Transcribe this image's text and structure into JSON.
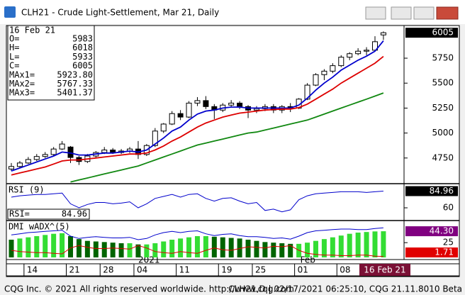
{
  "window": {
    "title": "CLH21 - Crude Light-Settlement, Mar 21, Daily",
    "status_left": "CQG Inc. © 2021 All rights reserved worldwide. http://www.cqg.com",
    "status_right": "CLH21,D | 02/17/2021 06:25:10, CQG 21.11.8010 Beta"
  },
  "info": {
    "date": "16 Feb 21",
    "rows": [
      {
        "label": "O=",
        "value": "5983"
      },
      {
        "label": "H=",
        "value": "6018"
      },
      {
        "label": "L=",
        "value": "5933"
      },
      {
        "label": "C=",
        "value": "6005"
      },
      {
        "label": "MAx1=",
        "value": "5923.80"
      },
      {
        "label": "MAx2=",
        "value": "5767.33"
      },
      {
        "label": "MAx3=",
        "value": "5401.37"
      }
    ]
  },
  "chart_data": [
    {
      "type": "candlestick",
      "categories": [
        null,
        null,
        "14",
        null,
        null,
        null,
        null,
        "21",
        null,
        null,
        null,
        "28",
        null,
        null,
        null,
        "04",
        null,
        null,
        null,
        null,
        "11",
        null,
        null,
        null,
        null,
        "19",
        null,
        null,
        null,
        "25",
        null,
        null,
        null,
        null,
        "01",
        null,
        null,
        null,
        null,
        "08",
        null,
        null,
        null,
        null,
        null
      ],
      "year_label": "2021",
      "month_label": "Feb",
      "cursor_label": "16 Feb 21",
      "open": [
        4640,
        4665,
        4700,
        4735,
        4765,
        4785,
        4840,
        4860,
        4755,
        4715,
        4770,
        4805,
        4830,
        4805,
        4820,
        4840,
        4785,
        4875,
        5020,
        5090,
        5195,
        5160,
        5300,
        5325,
        5265,
        5230,
        5280,
        5300,
        5265,
        5230,
        5245,
        5265,
        5230,
        5265,
        5250,
        5340,
        5480,
        5585,
        5620,
        5675,
        5760,
        5795,
        5820,
        5830,
        5983
      ],
      "high": [
        4700,
        4720,
        4760,
        4790,
        4810,
        4860,
        4920,
        4870,
        4770,
        4790,
        4820,
        4860,
        4850,
        4840,
        4860,
        4920,
        4890,
        5050,
        5100,
        5220,
        5230,
        5320,
        5360,
        5370,
        5290,
        5300,
        5330,
        5320,
        5280,
        5270,
        5290,
        5290,
        5280,
        5300,
        5350,
        5500,
        5600,
        5640,
        5700,
        5780,
        5810,
        5850,
        5860,
        5970,
        6018
      ],
      "low": [
        4620,
        4650,
        4690,
        4720,
        4750,
        4770,
        4830,
        4700,
        4680,
        4700,
        4750,
        4790,
        4790,
        4790,
        4800,
        4740,
        4770,
        4860,
        5000,
        5080,
        5130,
        5150,
        5270,
        5240,
        5140,
        5210,
        5260,
        5240,
        5150,
        5200,
        5220,
        5200,
        5200,
        5210,
        5240,
        5330,
        5470,
        5530,
        5600,
        5660,
        5730,
        5780,
        5780,
        5820,
        5933
      ],
      "close": [
        4665,
        4700,
        4735,
        4765,
        4785,
        4840,
        4890,
        4755,
        4715,
        4770,
        4805,
        4830,
        4805,
        4820,
        4840,
        4785,
        4875,
        5020,
        5090,
        5195,
        5160,
        5300,
        5325,
        5265,
        5230,
        5280,
        5300,
        5265,
        5230,
        5245,
        5265,
        5230,
        5265,
        5250,
        5340,
        5480,
        5585,
        5620,
        5675,
        5760,
        5795,
        5820,
        5830,
        5915,
        6005
      ],
      "series": [
        {
          "color": "#0000cc",
          "values": [
            4620,
            4650,
            4680,
            4710,
            4740,
            4770,
            4810,
            4800,
            4780,
            4780,
            4790,
            4800,
            4800,
            4810,
            4820,
            4810,
            4830,
            4890,
            4950,
            5020,
            5060,
            5130,
            5190,
            5220,
            5230,
            5250,
            5260,
            5260,
            5250,
            5250,
            5250,
            5250,
            5250,
            5250,
            5280,
            5350,
            5430,
            5500,
            5560,
            5630,
            5680,
            5730,
            5770,
            5820,
            5923.8
          ]
        },
        {
          "color": "#dd0000",
          "values": [
            4580,
            4600,
            4620,
            4640,
            4660,
            4690,
            4720,
            4730,
            4730,
            4740,
            4750,
            4760,
            4770,
            4780,
            4790,
            4790,
            4800,
            4830,
            4870,
            4920,
            4960,
            5010,
            5060,
            5100,
            5130,
            5160,
            5180,
            5200,
            5210,
            5220,
            5230,
            5235,
            5240,
            5240,
            5255,
            5290,
            5340,
            5390,
            5440,
            5500,
            5550,
            5600,
            5650,
            5700,
            5767.33
          ]
        },
        {
          "color": "#118811",
          "values": [
            null,
            null,
            null,
            null,
            null,
            null,
            null,
            4510,
            4530,
            4550,
            4570,
            4590,
            4610,
            4630,
            4650,
            4670,
            4700,
            4730,
            4760,
            4790,
            4820,
            4850,
            4880,
            4900,
            4920,
            4940,
            4960,
            4980,
            5000,
            5010,
            5030,
            5050,
            5070,
            5090,
            5110,
            5130,
            5160,
            5190,
            5220,
            5250,
            5280,
            5310,
            5340,
            5370,
            5401.37
          ]
        }
      ],
      "ylim": [
        4500,
        6070
      ],
      "yticks": [
        4750,
        5000,
        5250,
        5500,
        5750
      ],
      "grid": false
    },
    {
      "type": "line",
      "title": "RSI (9)",
      "value_title": "RSI=",
      "color": "#0000cc",
      "values": [
        76,
        78,
        79,
        80,
        80,
        81,
        82,
        66,
        60,
        65,
        68,
        68,
        66,
        67,
        69,
        60,
        66,
        74,
        77,
        80,
        76,
        80,
        81,
        74,
        70,
        74,
        75,
        70,
        66,
        68,
        56,
        58,
        54,
        57,
        72,
        78,
        81,
        82,
        83,
        84,
        84,
        84,
        83,
        84,
        84.96
      ],
      "ylim": [
        42,
        94
      ],
      "yticks": [
        60
      ]
    },
    {
      "type": "dmi",
      "title": "DMI wADX^(5)",
      "series": [
        {
          "color": "#006400",
          "rise_color": "#33dd33",
          "values": [
            30,
            32,
            34,
            36,
            38,
            40,
            41,
            36,
            31,
            28,
            27,
            26,
            25,
            24,
            24,
            22,
            22,
            24,
            27,
            30,
            32,
            34,
            36,
            36,
            35,
            34,
            33,
            32,
            30,
            28,
            26,
            25,
            24,
            23,
            23,
            25,
            28,
            31,
            34,
            37,
            40,
            42,
            43,
            44,
            44.3
          ]
        },
        {
          "color": "#0000cc",
          "values": [
            38,
            40,
            42,
            43,
            44,
            45,
            46,
            36,
            32,
            34,
            35,
            34,
            33,
            33,
            34,
            30,
            32,
            38,
            42,
            44,
            42,
            44,
            45,
            40,
            37,
            39,
            40,
            37,
            35,
            35,
            34,
            32,
            33,
            31,
            36,
            42,
            45,
            46,
            47,
            48,
            48,
            47,
            47,
            49,
            50
          ]
        },
        {
          "color": "#dd0000",
          "values": [
            12,
            10,
            9,
            8,
            8,
            7,
            6,
            16,
            20,
            17,
            15,
            15,
            16,
            15,
            14,
            20,
            16,
            10,
            8,
            7,
            10,
            8,
            7,
            12,
            16,
            13,
            12,
            15,
            18,
            17,
            16,
            19,
            18,
            20,
            12,
            7,
            5,
            4,
            4,
            3,
            3,
            4,
            4,
            2,
            1.71
          ]
        }
      ],
      "last_labels": [
        {
          "value": 44.3,
          "label": "44.30",
          "color": "#800080"
        },
        {
          "value": 1.71,
          "label": "1.71",
          "color": "#e00000"
        }
      ],
      "ylim": [
        0,
        60
      ],
      "yticks": [
        25
      ]
    }
  ]
}
